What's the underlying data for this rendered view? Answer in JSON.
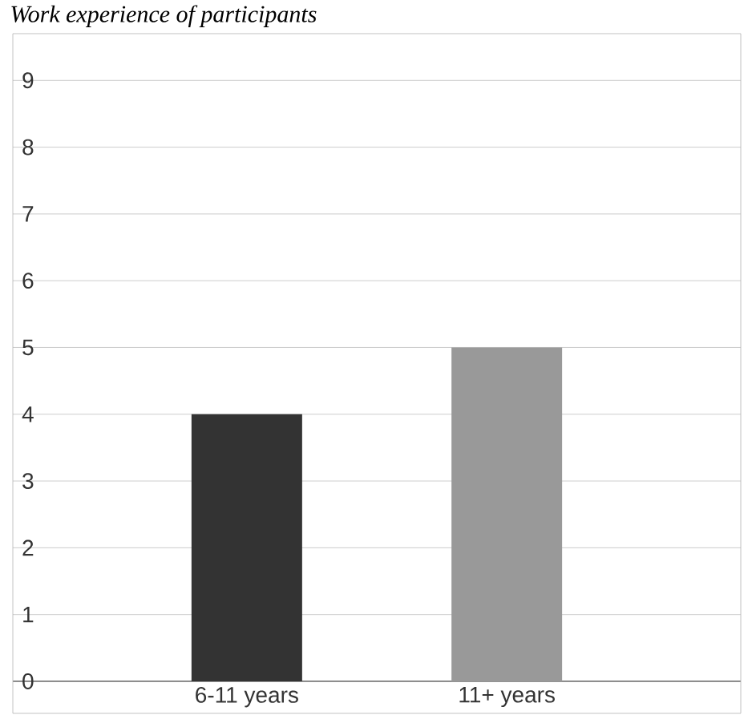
{
  "chart_data": {
    "type": "bar",
    "title": "*Work experience of participants*",
    "categories": [
      "6-11 years",
      "11+ years"
    ],
    "values": [
      4,
      5
    ],
    "colors": [
      "#333333",
      "#999999"
    ],
    "ylim": [
      0,
      9.7
    ],
    "yticks": [
      0,
      1,
      2,
      3,
      4,
      5,
      6,
      7,
      8,
      9
    ],
    "grid": "y"
  }
}
